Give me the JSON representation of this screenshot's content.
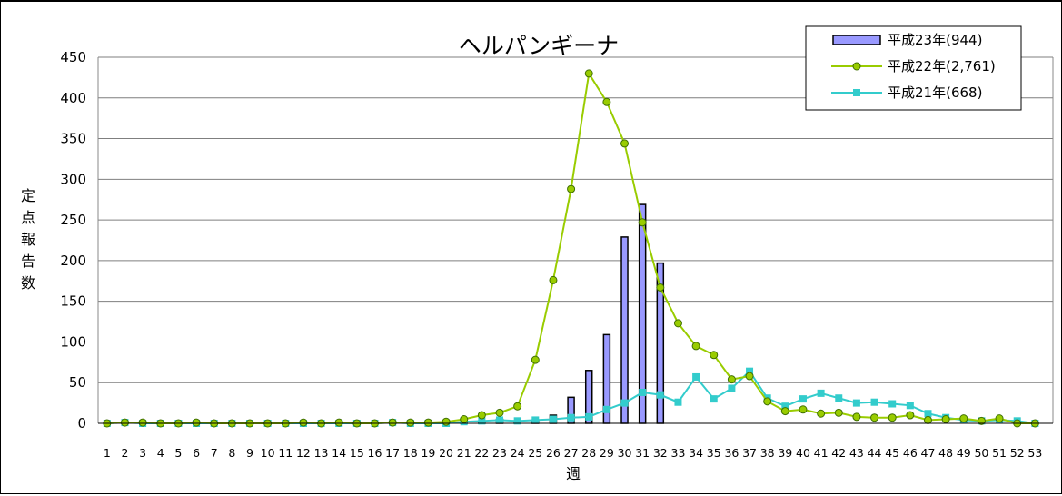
{
  "chart_data": {
    "type": "bar",
    "title": "ヘルパンギーナ",
    "xlabel": "週",
    "ylabel": "定点報告数",
    "ylim": [
      0,
      450
    ],
    "yticks": [
      0,
      50,
      100,
      150,
      200,
      250,
      300,
      350,
      400,
      450
    ],
    "grid": true,
    "legend_position": "top-right",
    "categories": [
      "1",
      "2",
      "3",
      "4",
      "5",
      "6",
      "7",
      "8",
      "9",
      "10",
      "11",
      "12",
      "13",
      "14",
      "15",
      "16",
      "17",
      "18",
      "19",
      "20",
      "21",
      "22",
      "23",
      "24",
      "25",
      "26",
      "27",
      "28",
      "29",
      "30",
      "31",
      "32",
      "33",
      "34",
      "35",
      "36",
      "37",
      "38",
      "39",
      "40",
      "41",
      "42",
      "43",
      "44",
      "45",
      "46",
      "47",
      "48",
      "49",
      "50",
      "51",
      "52",
      "53"
    ],
    "series": [
      {
        "name": "平成23年(944)",
        "kind": "bar",
        "color": "#9999ff",
        "values": [
          0,
          1,
          0,
          0,
          0,
          0,
          0,
          0,
          0,
          0,
          0,
          0,
          0,
          0,
          0,
          0,
          0,
          0,
          0,
          0,
          2,
          3,
          5,
          1,
          4,
          10,
          32,
          65,
          109,
          229,
          269,
          197,
          null,
          null,
          null,
          null,
          null,
          null,
          null,
          null,
          null,
          null,
          null,
          null,
          null,
          null,
          null,
          null,
          null,
          null,
          null,
          null,
          null
        ]
      },
      {
        "name": "平成22年(2,761)",
        "kind": "line",
        "color": "#99cc00",
        "marker": "circle",
        "values": [
          0,
          1,
          1,
          0,
          0,
          1,
          0,
          0,
          0,
          0,
          0,
          1,
          0,
          1,
          0,
          0,
          1,
          1,
          1,
          2,
          5,
          10,
          13,
          21,
          78,
          176,
          288,
          430,
          395,
          344,
          247,
          167,
          123,
          95,
          84,
          54,
          58,
          27,
          15,
          17,
          12,
          13,
          8,
          7,
          7,
          10,
          4,
          5,
          6,
          3,
          6,
          0,
          0
        ]
      },
      {
        "name": "平成21年(668)",
        "kind": "line",
        "color": "#33cccc",
        "marker": "square",
        "values": [
          0,
          1,
          0,
          0,
          0,
          0,
          0,
          0,
          0,
          0,
          0,
          0,
          0,
          0,
          0,
          0,
          1,
          0,
          0,
          0,
          2,
          3,
          4,
          3,
          4,
          5,
          7,
          8,
          17,
          25,
          38,
          35,
          26,
          57,
          30,
          43,
          64,
          31,
          21,
          30,
          37,
          31,
          25,
          26,
          24,
          22,
          12,
          7,
          4,
          3,
          4,
          3,
          0
        ]
      }
    ]
  }
}
